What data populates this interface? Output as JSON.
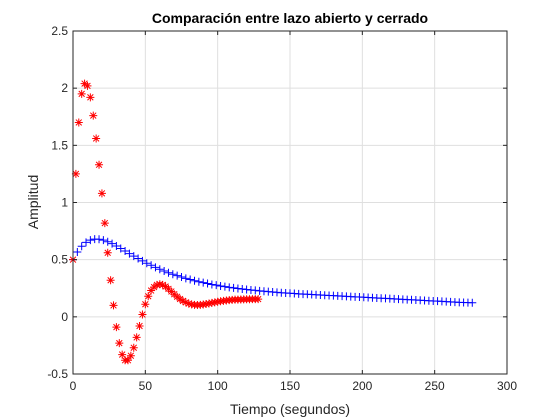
{
  "chart_data": {
    "type": "scatter",
    "title": "Comparación entre lazo abierto y cerrado",
    "xlabel": "Tiempo (segundos)",
    "ylabel": "Amplitud",
    "xlim": [
      0,
      300
    ],
    "ylim": [
      -0.5,
      2.5
    ],
    "x_ticks": [
      0,
      50,
      100,
      150,
      200,
      250,
      300
    ],
    "y_ticks": [
      -0.5,
      0,
      0.5,
      1,
      1.5,
      2,
      2.5
    ],
    "x_tick_labels": [
      "0",
      "50",
      "100",
      "150",
      "200",
      "250",
      "300"
    ],
    "y_tick_labels": [
      "-0.5",
      "0",
      "0.5",
      "1",
      "1.5",
      "2",
      "2.5"
    ],
    "grid": true,
    "series": [
      {
        "marker": "+",
        "color": "#0000ff",
        "x": [
          0,
          3,
          6,
          9,
          12,
          15,
          18,
          21,
          24,
          27,
          30,
          33,
          36,
          39,
          42,
          45,
          48,
          51,
          54,
          57,
          60,
          63,
          66,
          69,
          72,
          75,
          78,
          81,
          84,
          87,
          90,
          93,
          96,
          99,
          102,
          105,
          108,
          111,
          114,
          117,
          120,
          123,
          126,
          129,
          132,
          135,
          138,
          141,
          144,
          147,
          150,
          153,
          156,
          159,
          162,
          165,
          168,
          171,
          174,
          177,
          180,
          183,
          186,
          189,
          192,
          195,
          198,
          201,
          204,
          207,
          210,
          213,
          216,
          219,
          222,
          225,
          228,
          231,
          234,
          237,
          240,
          243,
          246,
          249,
          252,
          255,
          258,
          261,
          264,
          267,
          270,
          273,
          276
        ],
        "y": [
          0.5,
          0.567,
          0.617,
          0.651,
          0.671,
          0.68,
          0.679,
          0.671,
          0.657,
          0.64,
          0.62,
          0.598,
          0.576,
          0.553,
          0.531,
          0.51,
          0.489,
          0.469,
          0.451,
          0.433,
          0.416,
          0.401,
          0.386,
          0.372,
          0.36,
          0.348,
          0.336,
          0.326,
          0.316,
          0.307,
          0.299,
          0.291,
          0.283,
          0.277,
          0.27,
          0.264,
          0.258,
          0.253,
          0.248,
          0.243,
          0.239,
          0.235,
          0.231,
          0.227,
          0.224,
          0.22,
          0.217,
          0.214,
          0.211,
          0.209,
          0.206,
          0.204,
          0.201,
          0.199,
          0.197,
          0.195,
          0.193,
          0.191,
          0.189,
          0.187,
          0.185,
          0.183,
          0.181,
          0.179,
          0.177,
          0.175,
          0.173,
          0.171,
          0.169,
          0.167,
          0.165,
          0.163,
          0.161,
          0.159,
          0.157,
          0.155,
          0.153,
          0.151,
          0.149,
          0.147,
          0.145,
          0.143,
          0.141,
          0.139,
          0.137,
          0.135,
          0.133,
          0.131,
          0.129,
          0.127,
          0.125,
          0.124,
          0.123
        ]
      },
      {
        "marker": "*",
        "color": "#ff0000",
        "x": [
          0,
          2,
          4,
          6,
          8,
          10,
          12,
          14,
          16,
          18,
          20,
          22,
          24,
          26,
          28,
          30,
          32,
          34,
          36,
          38,
          40,
          42,
          44,
          46,
          48,
          50,
          52,
          54,
          56,
          58,
          60,
          62,
          64,
          66,
          68,
          70,
          72,
          74,
          76,
          78,
          80,
          82,
          84,
          86,
          88,
          90,
          92,
          94,
          96,
          98,
          100,
          102,
          104,
          106,
          108,
          110,
          112,
          114,
          116,
          118,
          120,
          122,
          124,
          126,
          128
        ],
        "y": [
          0.5,
          1.25,
          1.7,
          1.95,
          2.04,
          2.02,
          1.92,
          1.76,
          1.56,
          1.33,
          1.08,
          0.82,
          0.56,
          0.32,
          0.1,
          -0.09,
          -0.23,
          -0.33,
          -0.38,
          -0.38,
          -0.34,
          -0.27,
          -0.18,
          -0.08,
          0.02,
          0.11,
          0.18,
          0.23,
          0.26,
          0.28,
          0.285,
          0.28,
          0.265,
          0.245,
          0.222,
          0.198,
          0.176,
          0.156,
          0.139,
          0.126,
          0.116,
          0.109,
          0.105,
          0.104,
          0.105,
          0.108,
          0.112,
          0.117,
          0.122,
          0.127,
          0.132,
          0.136,
          0.14,
          0.143,
          0.146,
          0.148,
          0.15,
          0.151,
          0.152,
          0.153,
          0.154,
          0.154,
          0.155,
          0.155,
          0.155
        ]
      }
    ]
  }
}
